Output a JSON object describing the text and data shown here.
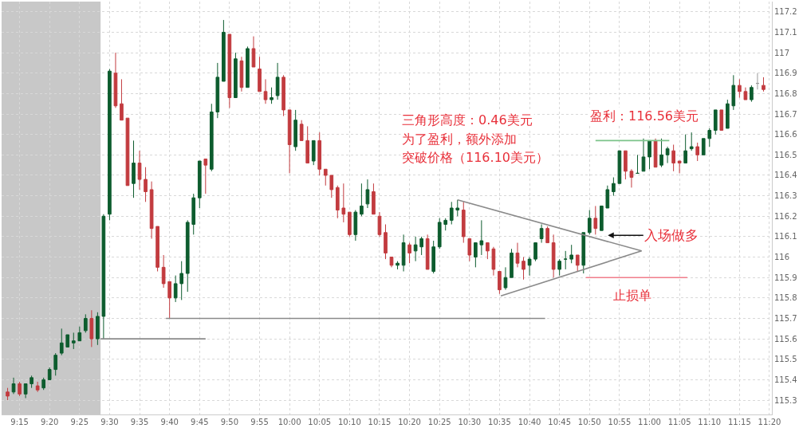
{
  "chart_data": {
    "type": "candlestick",
    "x": [
      9.2167,
      9.2333,
      9.25,
      9.2667,
      9.2833,
      9.3,
      9.3167,
      9.3333,
      9.35,
      9.3667,
      9.3833,
      9.4,
      9.4167,
      9.4333,
      9.45,
      9.4667,
      9.4833,
      9.5,
      9.5167,
      9.5333,
      9.55,
      9.5667,
      9.5833,
      9.6,
      9.6167,
      9.6333,
      9.65,
      9.6667,
      9.6833,
      9.7,
      9.7167,
      9.7333,
      9.75,
      9.7667,
      9.7833,
      9.8,
      9.8167,
      9.8333,
      9.85,
      9.8667,
      9.8833,
      9.9,
      9.9167,
      9.9333,
      9.95,
      9.9667,
      9.9833,
      10.0,
      10.0167,
      10.0333,
      10.05,
      10.0667,
      10.0833,
      10.1,
      10.1167,
      10.1333,
      10.15,
      10.1667,
      10.1833,
      10.2,
      10.2167,
      10.2333,
      10.25,
      10.2667,
      10.2833,
      10.3,
      10.3167,
      10.3333,
      10.35,
      10.3667,
      10.3833,
      10.4,
      10.4167,
      10.4333,
      10.45,
      10.4667,
      10.4833,
      10.5,
      10.5167,
      10.5333,
      10.55,
      10.5667,
      10.5833,
      10.6,
      10.6167,
      10.6333,
      10.65,
      10.6667,
      10.6833,
      10.7,
      10.7167,
      10.7333,
      10.75,
      10.7667,
      10.7833,
      10.8,
      10.8167,
      10.8333,
      10.85,
      10.8667,
      10.8833,
      10.9,
      10.9167,
      10.9333,
      10.95,
      10.9667,
      10.9833,
      11.0,
      11.0167,
      11.0333,
      11.05,
      11.0667,
      11.0833,
      11.1,
      11.1167,
      11.1333,
      11.15,
      11.1667,
      11.1833,
      11.2,
      11.2167,
      11.2333,
      11.25,
      11.2667,
      11.2833,
      11.3,
      11.3167
    ],
    "ohlc": [
      [
        115.34,
        115.36,
        115.3,
        115.32
      ],
      [
        115.34,
        115.41,
        115.33,
        115.38
      ],
      [
        115.38,
        115.39,
        115.32,
        115.33
      ],
      [
        115.33,
        115.38,
        115.31,
        115.38
      ],
      [
        115.38,
        115.42,
        115.36,
        115.41
      ],
      [
        115.37,
        115.39,
        115.34,
        115.35
      ],
      [
        115.36,
        115.41,
        115.35,
        115.4
      ],
      [
        115.4,
        115.46,
        115.4,
        115.45
      ],
      [
        115.45,
        115.53,
        115.42,
        115.52
      ],
      [
        115.53,
        115.65,
        115.52,
        115.58
      ],
      [
        115.56,
        115.62,
        115.56,
        115.62
      ],
      [
        115.58,
        115.63,
        115.55,
        115.59
      ],
      [
        115.59,
        115.66,
        115.59,
        115.63
      ],
      [
        115.64,
        115.72,
        115.63,
        115.7
      ],
      [
        115.7,
        115.74,
        115.56,
        115.6
      ],
      [
        115.6,
        115.73,
        115.57,
        115.71
      ],
      [
        115.71,
        116.21,
        115.6,
        116.2
      ],
      [
        116.21,
        116.92,
        116.18,
        116.91
      ],
      [
        116.9,
        117.0,
        116.73,
        116.74
      ],
      [
        116.75,
        116.87,
        116.67,
        116.67
      ],
      [
        116.68,
        116.68,
        116.35,
        116.35
      ],
      [
        116.36,
        116.57,
        116.29,
        116.46
      ],
      [
        116.46,
        116.52,
        116.33,
        116.38
      ],
      [
        116.38,
        116.44,
        116.27,
        116.32
      ],
      [
        116.33,
        116.37,
        116.09,
        116.14
      ],
      [
        116.15,
        116.15,
        115.93,
        115.95
      ],
      [
        115.95,
        116.01,
        115.85,
        115.87
      ],
      [
        115.88,
        115.88,
        115.7,
        115.8
      ],
      [
        115.8,
        115.91,
        115.78,
        115.87
      ],
      [
        115.87,
        115.98,
        115.79,
        115.92
      ],
      [
        115.92,
        116.18,
        115.83,
        116.17
      ],
      [
        116.16,
        116.31,
        116.11,
        116.29
      ],
      [
        116.29,
        116.47,
        116.24,
        116.47
      ],
      [
        116.48,
        116.48,
        116.31,
        116.45
      ],
      [
        116.43,
        116.75,
        116.42,
        116.71
      ],
      [
        116.71,
        116.95,
        116.68,
        116.88
      ],
      [
        116.86,
        117.16,
        116.86,
        117.1
      ],
      [
        117.09,
        117.09,
        116.73,
        116.78
      ],
      [
        116.78,
        117.0,
        116.78,
        116.97
      ],
      [
        116.96,
        116.98,
        116.81,
        116.83
      ],
      [
        116.83,
        117.03,
        116.83,
        117.02
      ],
      [
        117.02,
        117.08,
        116.93,
        116.93
      ],
      [
        116.92,
        116.98,
        116.81,
        116.81
      ],
      [
        116.81,
        116.87,
        116.75,
        116.77
      ],
      [
        116.77,
        116.83,
        116.75,
        116.78
      ],
      [
        116.79,
        116.95,
        116.77,
        116.88
      ],
      [
        116.88,
        116.89,
        116.69,
        116.72
      ],
      [
        116.72,
        116.72,
        116.41,
        116.55
      ],
      [
        116.54,
        116.72,
        116.52,
        116.67
      ],
      [
        116.65,
        116.67,
        116.57,
        116.57
      ],
      [
        116.57,
        116.64,
        116.46,
        116.46
      ],
      [
        116.47,
        116.57,
        116.45,
        116.57
      ],
      [
        116.57,
        116.61,
        116.4,
        116.43
      ],
      [
        116.43,
        116.43,
        116.35,
        116.4
      ],
      [
        116.4,
        116.4,
        116.29,
        116.33
      ],
      [
        116.34,
        116.35,
        116.19,
        116.23
      ],
      [
        116.24,
        116.36,
        116.17,
        116.21
      ],
      [
        116.22,
        116.22,
        116.1,
        116.11
      ],
      [
        116.11,
        116.23,
        116.08,
        116.22
      ],
      [
        116.21,
        116.36,
        116.2,
        116.25
      ],
      [
        116.26,
        116.38,
        116.24,
        116.33
      ],
      [
        116.32,
        116.36,
        116.21,
        116.21
      ],
      [
        116.2,
        116.22,
        116.1,
        116.11
      ],
      [
        116.12,
        116.16,
        115.99,
        116.02
      ],
      [
        116.0,
        116.0,
        115.95,
        115.96
      ],
      [
        115.96,
        115.98,
        115.94,
        115.97
      ],
      [
        115.96,
        116.11,
        115.93,
        116.07
      ],
      [
        116.06,
        116.07,
        115.97,
        116.02
      ],
      [
        116.03,
        116.1,
        115.98,
        116.06
      ],
      [
        116.05,
        116.1,
        116.01,
        116.09
      ],
      [
        116.09,
        116.11,
        115.94,
        115.94
      ],
      [
        115.93,
        116.08,
        115.92,
        116.05
      ],
      [
        116.05,
        116.19,
        116.04,
        116.17
      ],
      [
        116.16,
        116.19,
        116.13,
        116.18
      ],
      [
        116.18,
        116.27,
        116.16,
        116.24
      ],
      [
        116.23,
        116.28,
        116.2,
        116.24
      ],
      [
        116.23,
        116.27,
        116.07,
        116.1
      ],
      [
        116.09,
        116.09,
        115.98,
        116.01
      ],
      [
        116.0,
        116.07,
        115.95,
        116.07
      ],
      [
        116.06,
        116.18,
        116.01,
        116.08
      ],
      [
        116.07,
        116.07,
        115.99,
        116.03
      ],
      [
        116.04,
        116.05,
        115.91,
        115.94
      ],
      [
        115.93,
        115.93,
        115.82,
        115.84
      ],
      [
        115.85,
        115.95,
        115.84,
        115.9
      ],
      [
        115.9,
        116.04,
        115.9,
        116.02
      ],
      [
        116.02,
        116.07,
        115.95,
        115.97
      ],
      [
        115.98,
        116.0,
        115.89,
        115.94
      ],
      [
        115.96,
        116.0,
        115.91,
        115.99
      ],
      [
        115.99,
        116.07,
        115.98,
        116.07
      ],
      [
        116.09,
        116.16,
        116.07,
        116.14
      ],
      [
        116.14,
        116.15,
        116.07,
        116.07
      ],
      [
        116.07,
        116.11,
        115.9,
        115.94
      ],
      [
        115.94,
        115.99,
        115.91,
        115.98
      ],
      [
        115.99,
        116.03,
        115.94,
        115.99
      ],
      [
        115.99,
        116.06,
        115.97,
        116.01
      ],
      [
        116.01,
        116.01,
        115.93,
        115.96
      ],
      [
        115.96,
        116.12,
        115.92,
        116.12
      ],
      [
        116.12,
        116.23,
        116.11,
        116.19
      ],
      [
        116.19,
        116.25,
        116.11,
        116.14
      ],
      [
        116.13,
        116.25,
        116.13,
        116.25
      ],
      [
        116.24,
        116.35,
        116.24,
        116.33
      ],
      [
        116.32,
        116.39,
        116.3,
        116.36
      ],
      [
        116.36,
        116.52,
        116.36,
        116.52
      ],
      [
        116.52,
        116.52,
        116.38,
        116.42
      ],
      [
        116.42,
        116.43,
        116.34,
        116.39
      ],
      [
        116.41,
        116.5,
        116.41,
        116.41
      ],
      [
        116.42,
        116.58,
        116.42,
        116.49
      ],
      [
        116.49,
        116.57,
        116.43,
        116.57
      ],
      [
        116.57,
        116.58,
        116.44,
        116.44
      ],
      [
        116.45,
        116.58,
        116.44,
        116.5
      ],
      [
        116.5,
        116.54,
        116.46,
        116.53
      ],
      [
        116.52,
        116.55,
        116.42,
        116.46
      ],
      [
        116.47,
        116.47,
        116.41,
        116.46
      ],
      [
        116.46,
        116.6,
        116.46,
        116.52
      ],
      [
        116.53,
        116.61,
        116.52,
        116.54
      ],
      [
        116.54,
        116.56,
        116.47,
        116.5
      ],
      [
        116.5,
        116.58,
        116.5,
        116.58
      ],
      [
        116.58,
        116.63,
        116.54,
        116.62
      ],
      [
        116.62,
        116.72,
        116.6,
        116.72
      ],
      [
        116.72,
        116.72,
        116.62,
        116.62
      ],
      [
        116.63,
        116.77,
        116.63,
        116.75
      ],
      [
        116.74,
        116.89,
        116.72,
        116.84
      ],
      [
        116.84,
        116.87,
        116.78,
        116.81
      ],
      [
        116.81,
        116.83,
        116.77,
        116.77
      ],
      [
        116.77,
        116.84,
        116.76,
        116.83
      ],
      [
        116.85,
        116.9,
        116.82,
        116.85
      ],
      [
        116.84,
        116.88,
        116.81,
        116.82
      ]
    ],
    "colors": [
      "#c23b3f",
      "#0d5c2e",
      "#c23b3f",
      "#0d5c2e",
      "#0d5c2e",
      "#c23b3f",
      "#0d5c2e",
      "#0d5c2e",
      "#0d5c2e",
      "#0d5c2e",
      "#0d5c2e",
      "#0d5c2e",
      "#0d5c2e",
      "#0d5c2e",
      "#c23b3f",
      "#0d5c2e",
      "#0d5c2e",
      "#0d5c2e",
      "#c23b3f",
      "#c23b3f",
      "#c23b3f",
      "#0d5c2e",
      "#c23b3f",
      "#c23b3f",
      "#c23b3f",
      "#c23b3f",
      "#c23b3f",
      "#c23b3f",
      "#0d5c2e",
      "#0d5c2e",
      "#0d5c2e",
      "#0d5c2e",
      "#0d5c2e",
      "#c23b3f",
      "#0d5c2e",
      "#0d5c2e",
      "#0d5c2e",
      "#c23b3f",
      "#0d5c2e",
      "#c23b3f",
      "#0d5c2e",
      "#c23b3f",
      "#c23b3f",
      "#c23b3f",
      "#0d5c2e",
      "#0d5c2e",
      "#c23b3f",
      "#c23b3f",
      "#0d5c2e",
      "#c23b3f",
      "#c23b3f",
      "#0d5c2e",
      "#c23b3f",
      "#c23b3f",
      "#c23b3f",
      "#c23b3f",
      "#c23b3f",
      "#c23b3f",
      "#0d5c2e",
      "#0d5c2e",
      "#0d5c2e",
      "#c23b3f",
      "#c23b3f",
      "#c23b3f",
      "#c23b3f",
      "#0d5c2e",
      "#0d5c2e",
      "#c23b3f",
      "#0d5c2e",
      "#0d5c2e",
      "#c23b3f",
      "#0d5c2e",
      "#0d5c2e",
      "#0d5c2e",
      "#0d5c2e",
      "#0d5c2e",
      "#c23b3f",
      "#c23b3f",
      "#0d5c2e",
      "#0d5c2e",
      "#c23b3f",
      "#c23b3f",
      "#c23b3f",
      "#0d5c2e",
      "#0d5c2e",
      "#c23b3f",
      "#c23b3f",
      "#0d5c2e",
      "#0d5c2e",
      "#0d5c2e",
      "#c23b3f",
      "#c23b3f",
      "#0d5c2e",
      "#0d5c2e",
      "#0d5c2e",
      "#c23b3f",
      "#0d5c2e",
      "#0d5c2e",
      "#c23b3f",
      "#0d5c2e",
      "#0d5c2e",
      "#0d5c2e",
      "#0d5c2e",
      "#c23b3f",
      "#c23b3f",
      "#0d5c2e",
      "#0d5c2e",
      "#0d5c2e",
      "#c23b3f",
      "#0d5c2e",
      "#0d5c2e",
      "#c23b3f",
      "#c23b3f",
      "#0d5c2e",
      "#0d5c2e",
      "#c23b3f",
      "#0d5c2e",
      "#0d5c2e",
      "#0d5c2e",
      "#c23b3f",
      "#0d5c2e",
      "#0d5c2e",
      "#c23b3f",
      "#c23b3f",
      "#0d5c2e",
      "#999999",
      "#c23b3f"
    ],
    "series": [
      {
        "type": "line",
        "color": "#8a8a8a",
        "x": [
          9.475,
          9.7667
        ],
        "values": [
          115.6,
          115.6
        ]
      },
      {
        "type": "line",
        "color": "#8a8a8a",
        "x": [
          9.6567,
          10.71
        ],
        "values": [
          115.7,
          115.7
        ]
      },
      {
        "type": "line",
        "color": "#8a8a8a",
        "x": [
          10.4667,
          10.978
        ],
        "values": [
          116.28,
          116.03
        ]
      },
      {
        "type": "line",
        "color": "#8a8a8a",
        "x": [
          10.587,
          10.978
        ],
        "values": [
          115.81,
          116.03
        ]
      },
      {
        "type": "line",
        "color": "#7cc48a",
        "x": [
          10.85,
          11.055
        ],
        "values": [
          116.57,
          116.57
        ]
      },
      {
        "type": "line",
        "color": "#f07d8a",
        "x": [
          10.823,
          11.105
        ],
        "values": [
          115.9,
          115.9
        ]
      }
    ],
    "bands": [
      {
        "axis": "x",
        "from": 9.2,
        "to": 9.475,
        "color": "#c8c8c8"
      }
    ],
    "annotations": [
      "三角形高度：0.46美元",
      "为了盈利，额外添加",
      "突破价格（116.10美元）",
      "盈利：116.56美元",
      "入场做多",
      "止损单"
    ],
    "xlim": [
      9.2,
      11.34
    ],
    "xticks": [
      {
        "value": 9.25,
        "label": "9:15"
      },
      {
        "value": 9.3333,
        "label": "9:20"
      },
      {
        "value": 9.4167,
        "label": "9:25"
      },
      {
        "value": 9.5,
        "label": "9:30"
      },
      {
        "value": 9.5833,
        "label": "9:35"
      },
      {
        "value": 9.6667,
        "label": "9:40"
      },
      {
        "value": 9.75,
        "label": "9:45"
      },
      {
        "value": 9.8333,
        "label": "9:50"
      },
      {
        "value": 9.9167,
        "label": "9:55"
      },
      {
        "value": 10,
        "label": "10:00"
      },
      {
        "value": 10.0833,
        "label": "10:05"
      },
      {
        "value": 10.1667,
        "label": "10:10"
      },
      {
        "value": 10.25,
        "label": "10:15"
      },
      {
        "value": 10.3333,
        "label": "10:20"
      },
      {
        "value": 10.4167,
        "label": "10:25"
      },
      {
        "value": 10.5,
        "label": "10:30"
      },
      {
        "value": 10.5833,
        "label": "10:35"
      },
      {
        "value": 10.6667,
        "label": "10:40"
      },
      {
        "value": 10.75,
        "label": "10:45"
      },
      {
        "value": 10.8333,
        "label": "10:50"
      },
      {
        "value": 10.9167,
        "label": "10:55"
      },
      {
        "value": 11,
        "label": "11:00"
      },
      {
        "value": 11.0833,
        "label": "11:05"
      },
      {
        "value": 11.1667,
        "label": "11:10"
      },
      {
        "value": 11.25,
        "label": "11:15"
      },
      {
        "value": 11.3333,
        "label": "11:20"
      }
    ],
    "ylim": [
      115.23,
      117.25
    ],
    "yticks": [
      115.3,
      115.4,
      115.5,
      115.6,
      115.7,
      115.8,
      115.9,
      116,
      116.1,
      116.2,
      116.3,
      116.4,
      116.5,
      116.6,
      116.7,
      116.8,
      116.9,
      117,
      117.1,
      117.2
    ],
    "grid": true
  }
}
